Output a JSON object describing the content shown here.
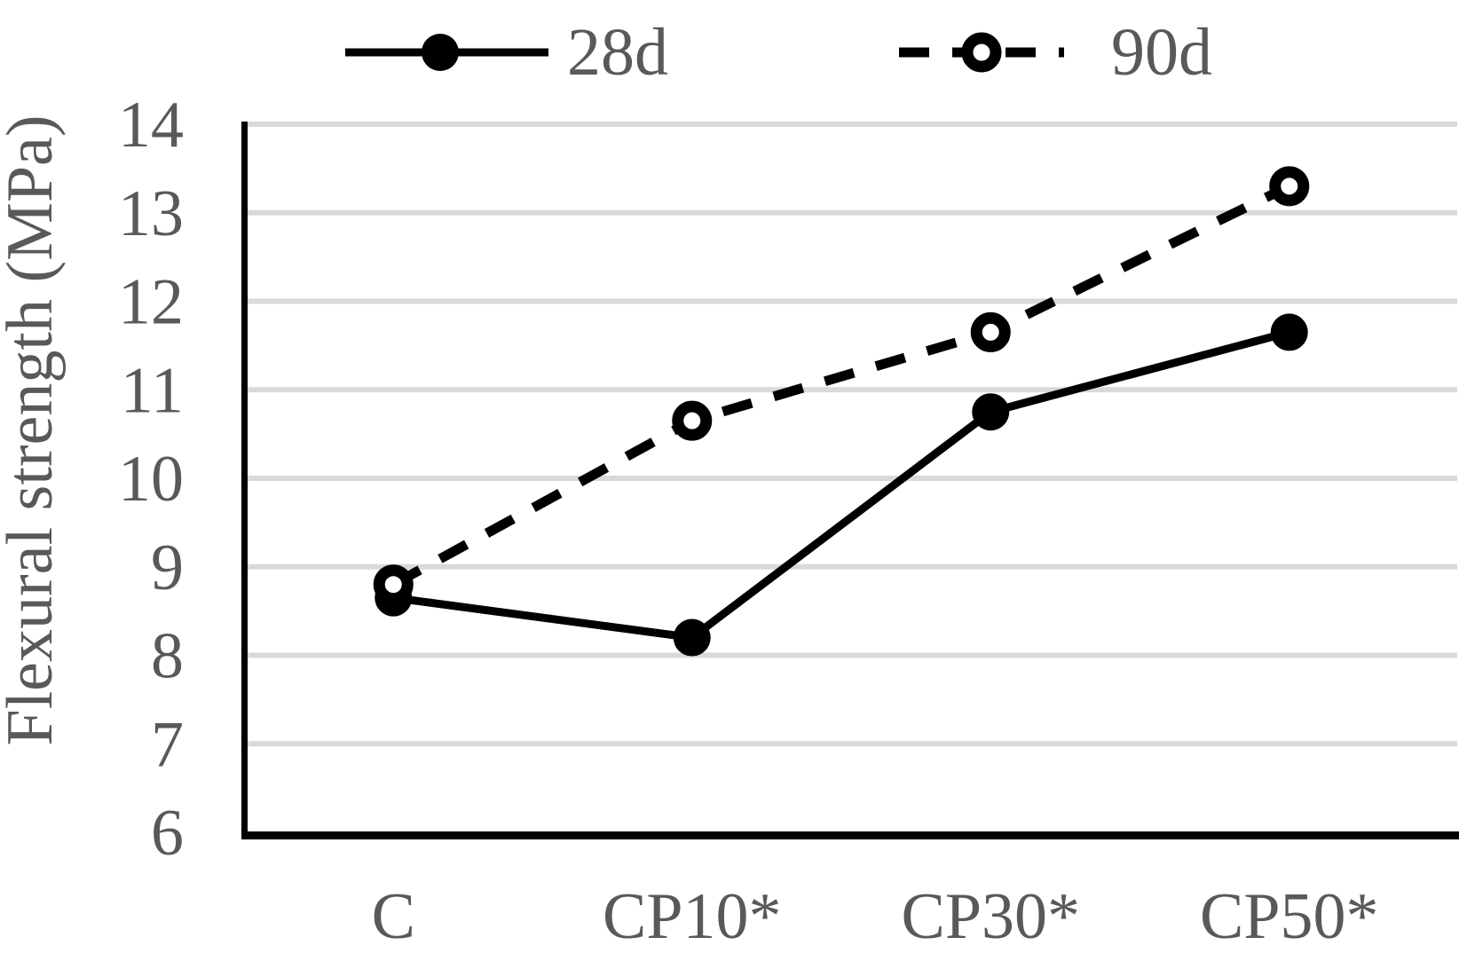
{
  "chart_data": {
    "type": "line",
    "title": "",
    "categories": [
      "C",
      "CP10*",
      "CP30*",
      "CP50*"
    ],
    "series": [
      {
        "name": "28d",
        "values": [
          8.65,
          8.2,
          10.75,
          11.65
        ],
        "line_style": "solid",
        "marker": "filled-circle"
      },
      {
        "name": "90d",
        "values": [
          8.8,
          10.65,
          11.65,
          13.3
        ],
        "line_style": "dashed",
        "marker": "open-circle"
      }
    ],
    "xlabel": "",
    "ylabel": "Flexural strength (MPa)",
    "ylim": [
      6,
      14
    ],
    "yticks": [
      6,
      7,
      8,
      9,
      10,
      11,
      12,
      13,
      14
    ],
    "grid": "horizontal",
    "legend_position": "top-center",
    "colors": {
      "series": "#000000",
      "grid": "#d9d9d9",
      "axis": "#000000",
      "label_text": "#595959",
      "background": "#ffffff"
    }
  }
}
